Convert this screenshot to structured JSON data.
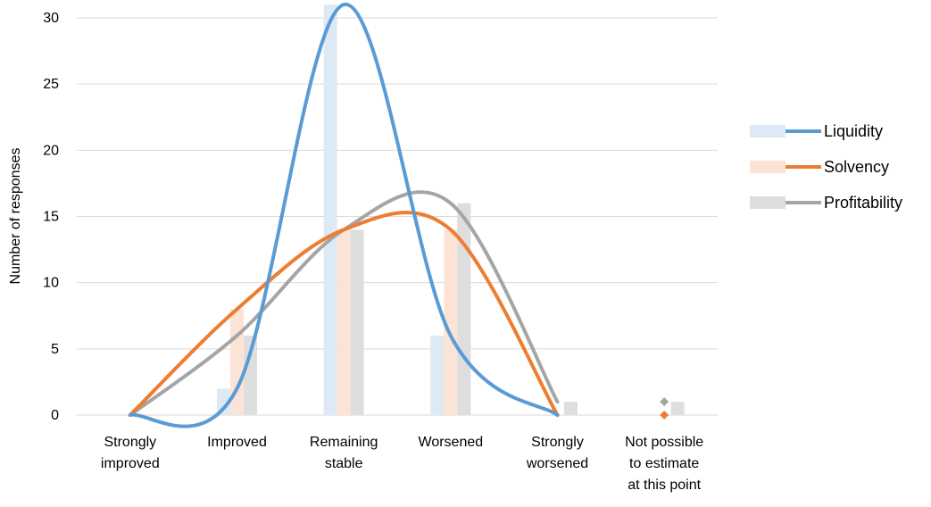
{
  "chart_data": {
    "type": "bar",
    "categories": [
      "Strongly improved",
      "Improved",
      "Remaining stable",
      "Worsened",
      "Strongly worsened",
      "Not possible to estimate at this point"
    ],
    "category_label_lines": [
      [
        "Strongly",
        "improved"
      ],
      [
        "Improved"
      ],
      [
        "Remaining",
        "stable"
      ],
      [
        "Worsened"
      ],
      [
        "Strongly",
        "worsened"
      ],
      [
        "Not possible",
        "to estimate",
        "at this point"
      ]
    ],
    "series": [
      {
        "name": "Liquidity",
        "values": [
          0,
          2,
          31,
          6,
          0,
          0
        ],
        "bar_color": "#dde9f5",
        "line_color": "#5b9bd5"
      },
      {
        "name": "Solvency",
        "values": [
          0,
          8,
          14,
          14,
          0,
          0
        ],
        "bar_color": "#fbe3d6",
        "line_color": "#ed7d31"
      },
      {
        "name": "Profitability",
        "values": [
          0,
          6,
          14,
          16,
          1,
          1
        ],
        "bar_color": "#dedede",
        "line_color": "#a5a5a5"
      }
    ],
    "overlay": "smoothed line per series over bars",
    "xlabel": "",
    "ylabel": "Number of responses",
    "ylim": [
      0,
      30
    ],
    "yticks": [
      0,
      5,
      10,
      15,
      20,
      25,
      30
    ],
    "grid": "horizontal",
    "legend_position": "right"
  }
}
